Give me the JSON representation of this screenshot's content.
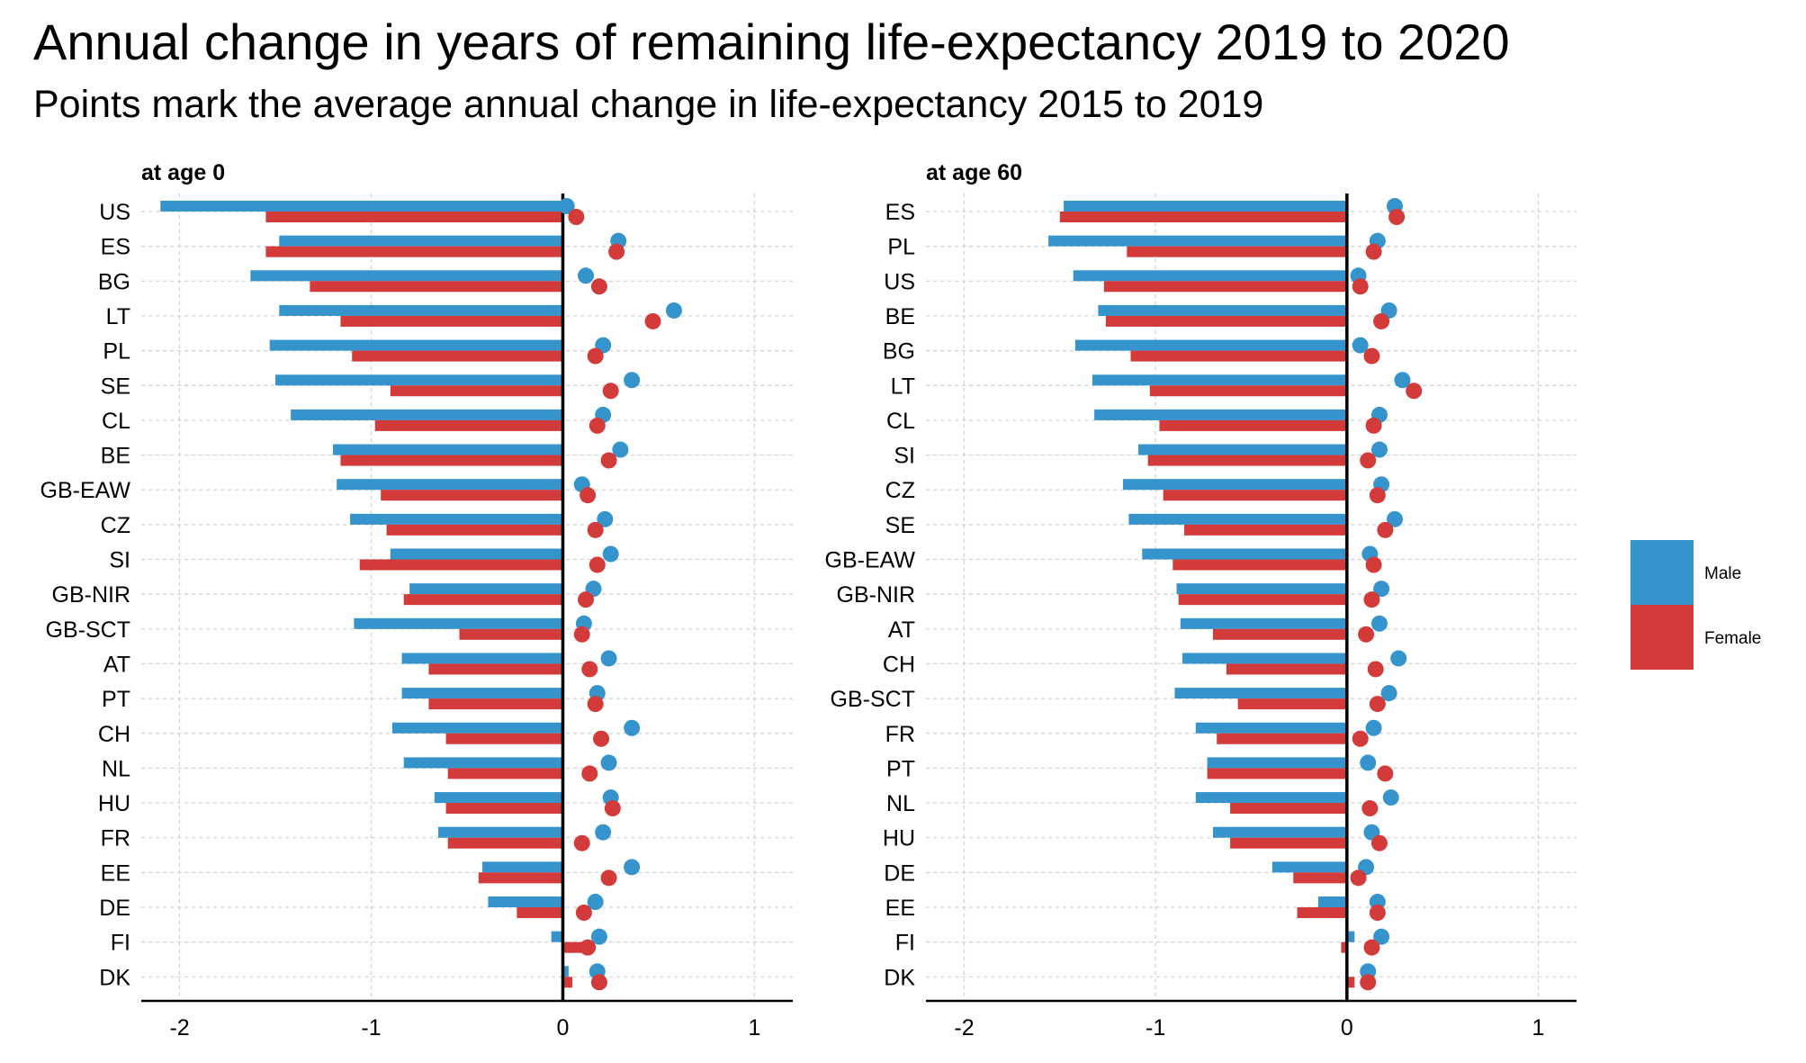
{
  "title": "Annual change in years of remaining life-expectancy 2019 to 2020",
  "subtitle": "Points mark the average annual change in life-expectancy 2015 to 2019",
  "colors": {
    "male": "#3594cc",
    "female": "#d33a3a"
  },
  "legend": {
    "placement": "right",
    "items": [
      {
        "label": "Male",
        "color": "#3594cc"
      },
      {
        "label": "Female",
        "color": "#d33a3a"
      }
    ]
  },
  "chart_data": [
    {
      "type": "bar",
      "title": "at age 0",
      "xlim": [
        -2.2,
        1.2
      ],
      "x_ticks": [
        -2,
        -1,
        0,
        1
      ],
      "x_tick_labels": [
        "-2",
        "-1",
        "0",
        "1"
      ],
      "grid": true,
      "categories": [
        "US",
        "ES",
        "BG",
        "LT",
        "PL",
        "SE",
        "CL",
        "BE",
        "GB-EAW",
        "CZ",
        "SI",
        "GB-NIR",
        "GB-SCT",
        "AT",
        "PT",
        "CH",
        "NL",
        "HU",
        "FR",
        "EE",
        "DE",
        "FI",
        "DK"
      ],
      "series": [
        {
          "name": "Male",
          "kind": "bar",
          "values": [
            -2.1,
            -1.48,
            -1.63,
            -1.48,
            -1.53,
            -1.5,
            -1.42,
            -1.2,
            -1.18,
            -1.11,
            -0.9,
            -0.8,
            -1.09,
            -0.84,
            -0.84,
            -0.89,
            -0.83,
            -0.67,
            -0.65,
            -0.42,
            -0.39,
            -0.06,
            0.03
          ]
        },
        {
          "name": "Female",
          "kind": "bar",
          "values": [
            -1.55,
            -1.55,
            -1.32,
            -1.16,
            -1.1,
            -0.9,
            -0.98,
            -1.16,
            -0.95,
            -0.92,
            -1.06,
            -0.83,
            -0.54,
            -0.7,
            -0.7,
            -0.61,
            -0.6,
            -0.61,
            -0.6,
            -0.44,
            -0.24,
            0.1,
            0.05
          ]
        },
        {
          "name": "Male",
          "kind": "point",
          "values": [
            0.02,
            0.29,
            0.12,
            0.58,
            0.21,
            0.36,
            0.21,
            0.3,
            0.1,
            0.22,
            0.25,
            0.16,
            0.11,
            0.24,
            0.18,
            0.36,
            0.24,
            0.25,
            0.21,
            0.36,
            0.17,
            0.19,
            0.18
          ]
        },
        {
          "name": "Female",
          "kind": "point",
          "values": [
            0.07,
            0.28,
            0.19,
            0.47,
            0.17,
            0.25,
            0.18,
            0.24,
            0.13,
            0.17,
            0.18,
            0.12,
            0.1,
            0.14,
            0.17,
            0.2,
            0.14,
            0.26,
            0.1,
            0.24,
            0.11,
            0.13,
            0.19
          ]
        }
      ]
    },
    {
      "type": "bar",
      "title": "at age 60",
      "xlim": [
        -2.2,
        1.2
      ],
      "x_ticks": [
        -2,
        -1,
        0,
        1
      ],
      "x_tick_labels": [
        "-2",
        "-1",
        "0",
        "1"
      ],
      "grid": true,
      "categories": [
        "ES",
        "PL",
        "US",
        "BE",
        "BG",
        "LT",
        "CL",
        "SI",
        "CZ",
        "SE",
        "GB-EAW",
        "GB-NIR",
        "AT",
        "CH",
        "GB-SCT",
        "FR",
        "PT",
        "NL",
        "HU",
        "DE",
        "EE",
        "FI",
        "DK"
      ],
      "series": [
        {
          "name": "Male",
          "kind": "bar",
          "values": [
            -1.48,
            -1.56,
            -1.43,
            -1.3,
            -1.42,
            -1.33,
            -1.32,
            -1.09,
            -1.17,
            -1.14,
            -1.07,
            -0.89,
            -0.87,
            -0.86,
            -0.9,
            -0.79,
            -0.73,
            -0.79,
            -0.7,
            -0.39,
            -0.15,
            0.04,
            0.0
          ]
        },
        {
          "name": "Female",
          "kind": "bar",
          "values": [
            -1.5,
            -1.15,
            -1.27,
            -1.26,
            -1.13,
            -1.03,
            -0.98,
            -1.04,
            -0.96,
            -0.85,
            -0.91,
            -0.88,
            -0.7,
            -0.63,
            -0.57,
            -0.68,
            -0.73,
            -0.61,
            -0.61,
            -0.28,
            -0.26,
            -0.03,
            0.04
          ]
        },
        {
          "name": "Male",
          "kind": "point",
          "values": [
            0.25,
            0.16,
            0.06,
            0.22,
            0.07,
            0.29,
            0.17,
            0.17,
            0.18,
            0.25,
            0.12,
            0.18,
            0.17,
            0.27,
            0.22,
            0.14,
            0.11,
            0.23,
            0.13,
            0.1,
            0.16,
            0.18,
            0.11
          ]
        },
        {
          "name": "Female",
          "kind": "point",
          "values": [
            0.26,
            0.14,
            0.07,
            0.18,
            0.13,
            0.35,
            0.14,
            0.11,
            0.16,
            0.2,
            0.14,
            0.13,
            0.1,
            0.15,
            0.16,
            0.07,
            0.2,
            0.12,
            0.17,
            0.06,
            0.16,
            0.13,
            0.11
          ]
        }
      ]
    }
  ]
}
